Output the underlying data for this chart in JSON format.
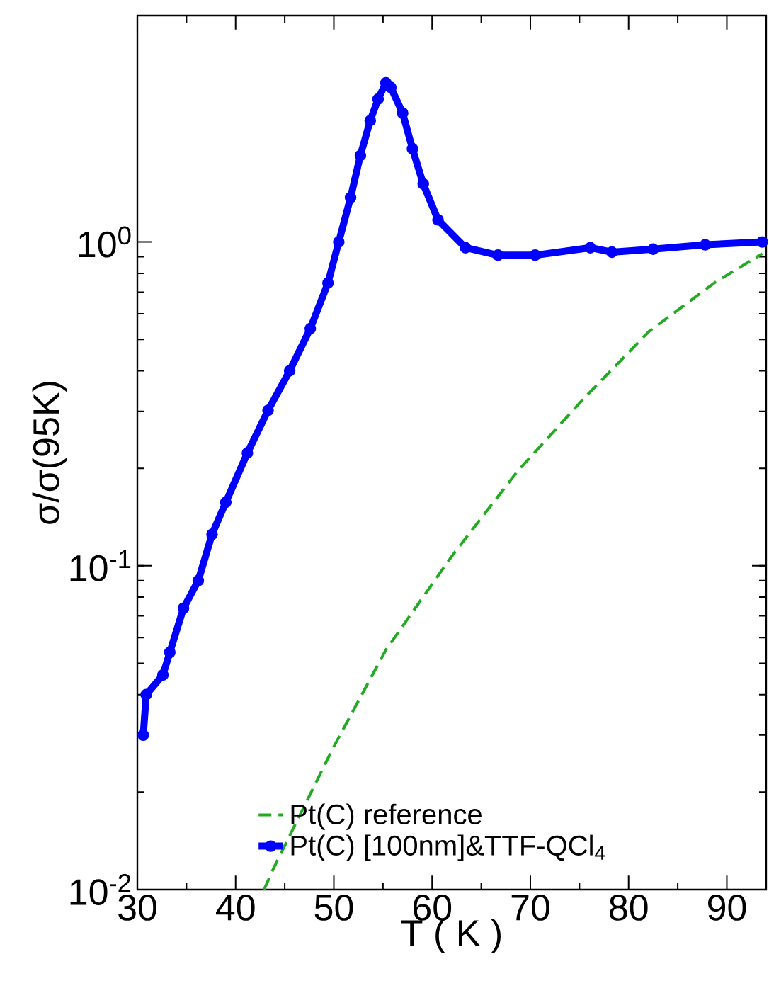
{
  "chart_data": {
    "type": "line",
    "xlabel": "T ( K )",
    "ylabel": "σ/σ(95K)",
    "log": "y",
    "xlim": [
      30,
      94
    ],
    "xticks": [
      30,
      40,
      50,
      60,
      70,
      80,
      90
    ],
    "ylim": [
      0.01,
      5
    ],
    "yticks": [
      {
        "value": 0.01,
        "label": "10$^{-2}$"
      },
      {
        "value": 0.1,
        "label": "10$^{-1}$"
      },
      {
        "value": 1,
        "label": "10$^{0}$"
      }
    ],
    "legend": "bottom",
    "grid": false,
    "series": [
      {
        "name": "Pt(C) reference",
        "color": "#22aa22",
        "line_style": "dashed",
        "marker": "none",
        "x": [
          42.9,
          43.9,
          49.9,
          55.3,
          62.0,
          68.7,
          75.5,
          82.1,
          88.8,
          93.6
        ],
        "values": [
          0.01,
          0.0117,
          0.0273,
          0.055,
          0.107,
          0.196,
          0.33,
          0.53,
          0.75,
          0.92
        ]
      },
      {
        "name": "Pt(C) [100nm]&TTF-QCl$_{4}$",
        "color": "#0000ff",
        "line_style": "solid",
        "marker": "circle",
        "x": [
          30.6,
          30.9,
          32.6,
          33.3,
          34.7,
          36.2,
          37.6,
          39.0,
          41.2,
          43.3,
          45.5,
          47.6,
          49.4,
          50.5,
          51.7,
          52.7,
          53.7,
          54.5,
          55.3,
          55.8,
          57.0,
          58.0,
          59.1,
          60.6,
          63.4,
          66.7,
          70.5,
          76.1,
          78.3,
          82.5,
          87.8,
          93.6
        ],
        "values": [
          0.03,
          0.04,
          0.046,
          0.054,
          0.074,
          0.09,
          0.125,
          0.157,
          0.223,
          0.302,
          0.4,
          0.54,
          0.747,
          1.0,
          1.37,
          1.85,
          2.37,
          2.76,
          3.1,
          3.0,
          2.5,
          1.94,
          1.51,
          1.17,
          0.96,
          0.91,
          0.91,
          0.96,
          0.93,
          0.95,
          0.98,
          1.0
        ]
      }
    ]
  }
}
